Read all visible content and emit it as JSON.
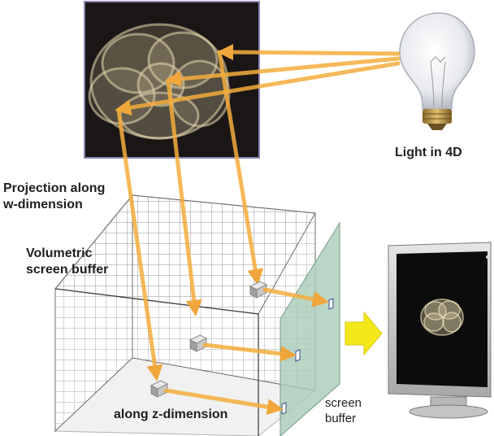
{
  "labels": {
    "light": "Light in 4D",
    "projection": [
      "Projection along",
      "w-dimension"
    ],
    "volumetric": [
      "Volumetric",
      "screen buffer"
    ],
    "z_dimension": "along z-dimension",
    "screen_buffer": [
      "screen",
      "buffer"
    ]
  },
  "colors": {
    "ray": "#f3ad3c",
    "ray_dark": "#e0902a",
    "panel_bg": "#1b1616",
    "panel_border": "#8a86b8",
    "glass": "#a9cdb9",
    "grid": "#7c7c7c",
    "yellow_arrow": "#f5e81a",
    "object": "#d8cba3"
  },
  "icons": [
    "light-bulb-icon",
    "monitor-icon",
    "arrow-right-icon",
    "hypersphere-object-icon"
  ]
}
